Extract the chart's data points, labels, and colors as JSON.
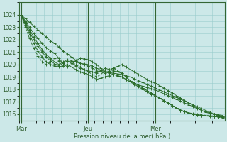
{
  "background_color": "#cce8e8",
  "grid_color": "#99cccc",
  "line_color": "#2d6e2d",
  "text_color": "#2d5c2d",
  "xlabel": "Pression niveau de la mer( hPa )",
  "ylim": [
    1015.5,
    1024.5
  ],
  "yticks": [
    1016,
    1017,
    1018,
    1019,
    1020,
    1021,
    1022,
    1023,
    1024
  ],
  "xtick_labels": [
    "Mar",
    "Jeu",
    "Mer"
  ],
  "xtick_positions": [
    0,
    16,
    32
  ],
  "total_points": 49,
  "xlim": [
    -0.5,
    48.5
  ],
  "series": [
    [
      1024.0,
      1023.7,
      1023.4,
      1023.1,
      1022.8,
      1022.5,
      1022.2,
      1021.9,
      1021.7,
      1021.4,
      1021.1,
      1020.85,
      1020.6,
      1020.35,
      1020.1,
      1020.05,
      1020.0,
      1019.85,
      1019.7,
      1019.55,
      1019.4,
      1019.35,
      1019.3,
      1019.25,
      1019.2,
      1019.1,
      1019.0,
      1018.85,
      1018.7,
      1018.55,
      1018.4,
      1018.25,
      1018.1,
      1017.95,
      1017.8,
      1017.65,
      1017.5,
      1017.35,
      1017.2,
      1017.05,
      1016.9,
      1016.75,
      1016.6,
      1016.45,
      1016.3,
      1016.15,
      1016.0,
      1015.85,
      1015.7
    ],
    [
      1024.0,
      1023.5,
      1023.0,
      1022.5,
      1022.1,
      1021.7,
      1021.35,
      1021.1,
      1020.9,
      1020.5,
      1020.1,
      1019.8,
      1020.0,
      1020.3,
      1020.5,
      1020.45,
      1020.4,
      1020.2,
      1020.0,
      1019.7,
      1019.4,
      1019.3,
      1019.2,
      1019.1,
      1019.0,
      1018.8,
      1018.6,
      1018.5,
      1018.35,
      1018.25,
      1018.15,
      1018.05,
      1017.95,
      1017.8,
      1017.65,
      1017.5,
      1017.35,
      1017.2,
      1017.05,
      1016.9,
      1016.75,
      1016.6,
      1016.45,
      1016.3,
      1016.2,
      1016.1,
      1016.0,
      1015.9,
      1015.8
    ],
    [
      1024.0,
      1023.4,
      1022.8,
      1022.2,
      1021.7,
      1021.2,
      1020.8,
      1020.5,
      1020.2,
      1020.0,
      1020.2,
      1020.4,
      1020.3,
      1020.2,
      1020.1,
      1020.0,
      1019.9,
      1019.7,
      1019.5,
      1019.4,
      1019.3,
      1019.5,
      1019.7,
      1019.85,
      1020.0,
      1019.8,
      1019.6,
      1019.4,
      1019.2,
      1019.0,
      1018.8,
      1018.6,
      1018.5,
      1018.3,
      1018.1,
      1017.9,
      1017.7,
      1017.5,
      1017.3,
      1017.1,
      1016.9,
      1016.7,
      1016.5,
      1016.3,
      1016.15,
      1016.05,
      1016.0,
      1015.95,
      1015.9
    ],
    [
      1024.0,
      1023.3,
      1022.6,
      1022.0,
      1021.5,
      1021.0,
      1020.6,
      1020.3,
      1020.05,
      1019.9,
      1020.1,
      1020.3,
      1020.1,
      1019.9,
      1019.7,
      1019.6,
      1019.5,
      1019.4,
      1019.3,
      1019.5,
      1019.7,
      1019.6,
      1019.5,
      1019.4,
      1019.3,
      1019.0,
      1018.7,
      1018.5,
      1018.3,
      1018.1,
      1017.9,
      1017.7,
      1017.5,
      1017.3,
      1017.1,
      1016.9,
      1016.7,
      1016.5,
      1016.35,
      1016.2,
      1016.1,
      1016.0,
      1015.95,
      1015.9,
      1015.85,
      1015.82,
      1015.8,
      1015.78,
      1015.75
    ],
    [
      1024.0,
      1023.2,
      1022.4,
      1021.7,
      1021.1,
      1020.6,
      1020.2,
      1020.0,
      1019.9,
      1019.8,
      1019.9,
      1020.0,
      1019.8,
      1019.6,
      1019.4,
      1019.3,
      1019.2,
      1019.0,
      1018.8,
      1018.9,
      1019.0,
      1019.1,
      1019.2,
      1019.1,
      1019.0,
      1018.8,
      1018.6,
      1018.4,
      1018.2,
      1018.0,
      1017.8,
      1017.6,
      1017.5,
      1017.3,
      1017.1,
      1016.9,
      1016.7,
      1016.5,
      1016.3,
      1016.2,
      1016.1,
      1016.0,
      1015.95,
      1015.9,
      1015.88,
      1015.85,
      1015.82,
      1015.8,
      1015.78
    ]
  ],
  "dashed_series": [
    [
      1024.0,
      1023.0,
      1022.1,
      1021.3,
      1020.7,
      1020.2,
      1020.0,
      1020.2,
      1020.5,
      1020.3,
      1020.1,
      1020.3,
      1020.2,
      1020.0,
      1019.8,
      1019.6,
      1019.4,
      1019.2,
      1019.0,
      1019.2,
      1019.5,
      1019.6,
      1019.7,
      1019.5,
      1019.3,
      1019.0,
      1018.7,
      1018.5,
      1018.3,
      1018.1,
      1017.9,
      1017.7,
      1017.5,
      1017.3,
      1017.1,
      1016.9,
      1016.7,
      1016.5,
      1016.3,
      1016.2,
      1016.1,
      1016.05,
      1016.0,
      1015.95,
      1015.9,
      1015.87,
      1015.84,
      1015.82,
      1015.8
    ]
  ]
}
